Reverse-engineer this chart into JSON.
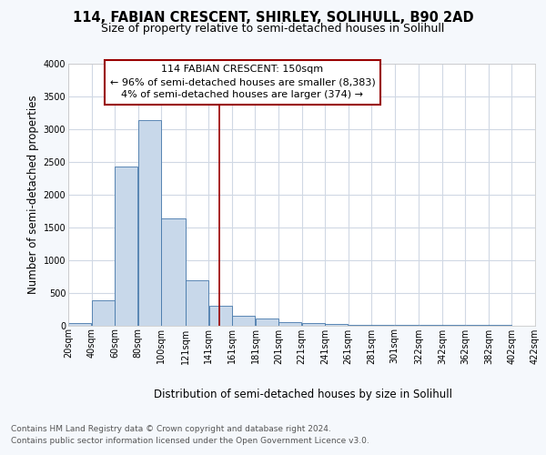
{
  "title": "114, FABIAN CRESCENT, SHIRLEY, SOLIHULL, B90 2AD",
  "subtitle": "Size of property relative to semi-detached houses in Solihull",
  "xlabel": "Distribution of semi-detached houses by size in Solihull",
  "ylabel": "Number of semi-detached properties",
  "footnote1": "Contains HM Land Registry data © Crown copyright and database right 2024.",
  "footnote2": "Contains public sector information licensed under the Open Government Licence v3.0.",
  "annotation_line1": "114 FABIAN CRESCENT: 150sqm",
  "annotation_line2": "← 96% of semi-detached houses are smaller (8,383)",
  "annotation_line3": "4% of semi-detached houses are larger (374) →",
  "bar_left_edges": [
    20,
    40,
    60,
    80,
    100,
    121,
    141,
    161,
    181,
    201,
    221,
    241,
    261,
    281,
    301,
    322,
    342,
    362,
    382,
    402
  ],
  "bar_widths": [
    20,
    20,
    20,
    20,
    21,
    20,
    20,
    20,
    20,
    20,
    20,
    20,
    20,
    20,
    21,
    20,
    20,
    20,
    20,
    20
  ],
  "bar_heights": [
    40,
    380,
    2430,
    3140,
    1640,
    690,
    300,
    150,
    100,
    55,
    30,
    20,
    10,
    5,
    3,
    2,
    1,
    1,
    1,
    0
  ],
  "bar_color": "#c8d8ea",
  "bar_edge_color": "#4477aa",
  "vline_x": 150,
  "vline_color": "#990000",
  "ylim": [
    0,
    4000
  ],
  "xlim": [
    20,
    422
  ],
  "xtick_positions": [
    20,
    40,
    60,
    80,
    100,
    121,
    141,
    161,
    181,
    201,
    221,
    241,
    261,
    281,
    301,
    322,
    342,
    362,
    382,
    402,
    422
  ],
  "xtick_labels": [
    "20sqm",
    "40sqm",
    "60sqm",
    "80sqm",
    "100sqm",
    "121sqm",
    "141sqm",
    "161sqm",
    "181sqm",
    "201sqm",
    "221sqm",
    "241sqm",
    "261sqm",
    "281sqm",
    "301sqm",
    "322sqm",
    "342sqm",
    "362sqm",
    "382sqm",
    "402sqm",
    "422sqm"
  ],
  "ytick_positions": [
    0,
    500,
    1000,
    1500,
    2000,
    2500,
    3000,
    3500,
    4000
  ],
  "background_color": "#f5f8fc",
  "plot_bg_color": "#ffffff",
  "grid_color": "#d0d8e4",
  "title_fontsize": 10.5,
  "subtitle_fontsize": 9,
  "axis_label_fontsize": 8.5,
  "tick_fontsize": 7,
  "annotation_fontsize": 8,
  "footnote_fontsize": 6.5
}
